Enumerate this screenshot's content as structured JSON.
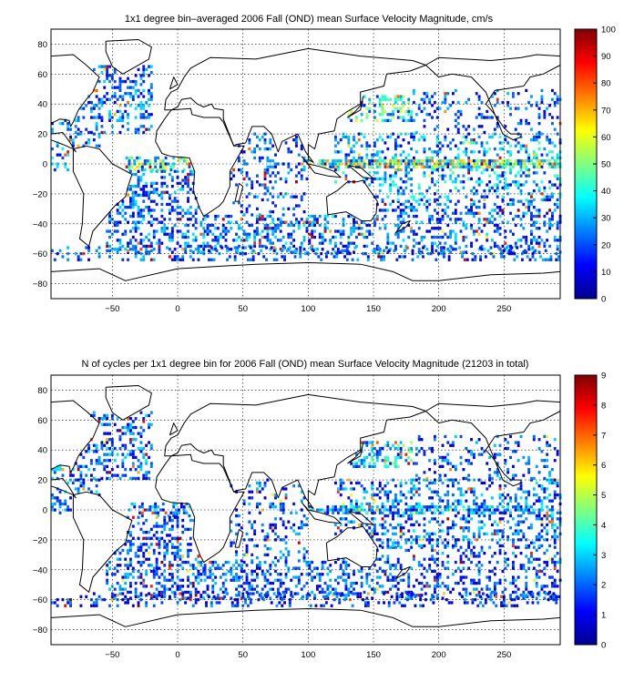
{
  "chart_data": [
    {
      "type": "heatmap",
      "title": "1x1 degree bin–averaged 2006 Fall (OND) mean Surface Velocity Magnitude, cm/s",
      "xlim": [
        -97,
        293
      ],
      "ylim": [
        -90,
        90
      ],
      "xticks": [
        -50,
        0,
        50,
        100,
        150,
        200,
        250
      ],
      "yticks": [
        -80,
        -60,
        -40,
        -20,
        0,
        20,
        40,
        60,
        80
      ],
      "grid": true,
      "colorbar": {
        "min": 0,
        "max": 100,
        "ticks": [
          0,
          10,
          20,
          30,
          40,
          50,
          60,
          70,
          80,
          90,
          100
        ],
        "colormap": "jet",
        "placement": "right"
      },
      "seed": 17,
      "regions": [
        {
          "lon": [
            -97,
            -20
          ],
          "lat": [
            20,
            65
          ],
          "density": 0.32,
          "mean": 22
        },
        {
          "lon": [
            -97,
            -60
          ],
          "lat": [
            -5,
            20
          ],
          "density": 0.3,
          "mean": 25
        },
        {
          "lon": [
            -40,
            10
          ],
          "lat": [
            -5,
            5
          ],
          "density": 0.55,
          "mean": 40
        },
        {
          "lon": [
            -55,
            20
          ],
          "lat": [
            -60,
            -5
          ],
          "density": 0.35,
          "mean": 22
        },
        {
          "lon": [
            20,
            120
          ],
          "lat": [
            -60,
            -35
          ],
          "density": 0.35,
          "mean": 25
        },
        {
          "lon": [
            40,
            100
          ],
          "lat": [
            -35,
            20
          ],
          "density": 0.22,
          "mean": 20
        },
        {
          "lon": [
            120,
            293
          ],
          "lat": [
            -60,
            -25
          ],
          "density": 0.28,
          "mean": 22
        },
        {
          "lon": [
            120,
            293
          ],
          "lat": [
            -25,
            20
          ],
          "density": 0.3,
          "mean": 28
        },
        {
          "lon": [
            130,
            180
          ],
          "lat": [
            28,
            45
          ],
          "density": 0.45,
          "mean": 38
        },
        {
          "lon": [
            180,
            293
          ],
          "lat": [
            20,
            50
          ],
          "density": 0.18,
          "mean": 20
        },
        {
          "lon": [
            100,
            293
          ],
          "lat": [
            -3,
            3
          ],
          "density": 0.7,
          "mean": 48
        },
        {
          "lon": [
            -97,
            293
          ],
          "lat": [
            -65,
            -55
          ],
          "density": 0.25,
          "mean": 20
        }
      ]
    },
    {
      "type": "heatmap",
      "title": "N of cycles per 1x1 degree bin for 2006 Fall (OND) mean Surface Velocity Magnitude (21203 in total)",
      "xlim": [
        -97,
        293
      ],
      "ylim": [
        -90,
        90
      ],
      "xticks": [
        -50,
        0,
        50,
        100,
        150,
        200,
        250
      ],
      "yticks": [
        -80,
        -60,
        -40,
        -20,
        0,
        20,
        40,
        60,
        80
      ],
      "grid": true,
      "colorbar": {
        "min": 0,
        "max": 9,
        "ticks": [
          0,
          1,
          2,
          3,
          4,
          5,
          6,
          7,
          8,
          9
        ],
        "colormap": "jet",
        "placement": "right"
      },
      "seed": 29,
      "regions": [
        {
          "lon": [
            -97,
            -20
          ],
          "lat": [
            20,
            65
          ],
          "density": 0.32,
          "mean": 2
        },
        {
          "lon": [
            -97,
            -60
          ],
          "lat": [
            -5,
            20
          ],
          "density": 0.3,
          "mean": 2
        },
        {
          "lon": [
            -40,
            10
          ],
          "lat": [
            -5,
            5
          ],
          "density": 0.4,
          "mean": 2.2
        },
        {
          "lon": [
            -55,
            20
          ],
          "lat": [
            -60,
            -5
          ],
          "density": 0.35,
          "mean": 1.8
        },
        {
          "lon": [
            20,
            120
          ],
          "lat": [
            -60,
            -35
          ],
          "density": 0.35,
          "mean": 1.8
        },
        {
          "lon": [
            40,
            100
          ],
          "lat": [
            -35,
            20
          ],
          "density": 0.22,
          "mean": 1.8
        },
        {
          "lon": [
            120,
            293
          ],
          "lat": [
            -60,
            -25
          ],
          "density": 0.28,
          "mean": 1.8
        },
        {
          "lon": [
            120,
            293
          ],
          "lat": [
            -25,
            20
          ],
          "density": 0.3,
          "mean": 2
        },
        {
          "lon": [
            130,
            180
          ],
          "lat": [
            28,
            45
          ],
          "density": 0.45,
          "mean": 3
        },
        {
          "lon": [
            180,
            293
          ],
          "lat": [
            20,
            50
          ],
          "density": 0.18,
          "mean": 1.8
        },
        {
          "lon": [
            100,
            293
          ],
          "lat": [
            -3,
            3
          ],
          "density": 0.5,
          "mean": 2.5
        },
        {
          "lon": [
            -97,
            293
          ],
          "lat": [
            -65,
            -55
          ],
          "density": 0.25,
          "mean": 1.6
        }
      ]
    }
  ],
  "coastlines": [
    {
      "name": "north-america-outline",
      "pts": [
        [
          -97,
          72
        ],
        [
          -80,
          73
        ],
        [
          -70,
          66
        ],
        [
          -60,
          58
        ],
        [
          -65,
          48
        ],
        [
          -70,
          43
        ],
        [
          -76,
          36
        ],
        [
          -80,
          28
        ],
        [
          -82,
          25
        ],
        [
          -83,
          29
        ],
        [
          -90,
          30
        ],
        [
          -97,
          27
        ],
        [
          -97,
          72
        ]
      ]
    },
    {
      "name": "south-america-outline",
      "pts": [
        [
          -80,
          10
        ],
        [
          -70,
          12
        ],
        [
          -60,
          10
        ],
        [
          -50,
          0
        ],
        [
          -35,
          -7
        ],
        [
          -38,
          -15
        ],
        [
          -40,
          -22
        ],
        [
          -48,
          -28
        ],
        [
          -58,
          -38
        ],
        [
          -65,
          -45
        ],
        [
          -68,
          -55
        ],
        [
          -75,
          -50
        ],
        [
          -73,
          -40
        ],
        [
          -72,
          -20
        ],
        [
          -80,
          -5
        ],
        [
          -80,
          10
        ]
      ]
    },
    {
      "name": "central-america-outline",
      "pts": [
        [
          -97,
          20
        ],
        [
          -88,
          21
        ],
        [
          -83,
          15
        ],
        [
          -78,
          8
        ],
        [
          -80,
          10
        ],
        [
          -88,
          13
        ],
        [
          -97,
          16
        ]
      ]
    },
    {
      "name": "greenland-outline",
      "pts": [
        [
          -55,
          82
        ],
        [
          -30,
          83
        ],
        [
          -20,
          78
        ],
        [
          -22,
          70
        ],
        [
          -42,
          60
        ],
        [
          -50,
          65
        ],
        [
          -55,
          75
        ],
        [
          -55,
          82
        ]
      ]
    },
    {
      "name": "europe-asia-outline",
      "pts": [
        [
          -10,
          36
        ],
        [
          -9,
          43
        ],
        [
          -5,
          48
        ],
        [
          0,
          50
        ],
        [
          5,
          58
        ],
        [
          10,
          64
        ],
        [
          25,
          71
        ],
        [
          60,
          70
        ],
        [
          100,
          77
        ],
        [
          140,
          72
        ],
        [
          180,
          69
        ],
        [
          190,
          66
        ],
        [
          178,
          62
        ],
        [
          160,
          60
        ],
        [
          158,
          52
        ],
        [
          140,
          48
        ],
        [
          140,
          40
        ],
        [
          130,
          35
        ],
        [
          122,
          30
        ],
        [
          120,
          22
        ],
        [
          108,
          20
        ],
        [
          105,
          10
        ],
        [
          100,
          13
        ],
        [
          100,
          3
        ],
        [
          104,
          1
        ],
        [
          98,
          8
        ],
        [
          92,
          20
        ],
        [
          80,
          15
        ],
        [
          77,
          8
        ],
        [
          72,
          20
        ],
        [
          66,
          25
        ],
        [
          57,
          25
        ],
        [
          52,
          14
        ],
        [
          45,
          13
        ],
        [
          43,
          12
        ],
        [
          35,
          30
        ],
        [
          35,
          36
        ],
        [
          28,
          37
        ],
        [
          26,
          40
        ],
        [
          20,
          38
        ],
        [
          15,
          40
        ],
        [
          10,
          44
        ],
        [
          3,
          43
        ],
        [
          0,
          38
        ],
        [
          -5,
          36
        ],
        [
          -10,
          36
        ]
      ]
    },
    {
      "name": "africa-outline",
      "pts": [
        [
          -17,
          15
        ],
        [
          -16,
          22
        ],
        [
          -10,
          30
        ],
        [
          -5,
          36
        ],
        [
          10,
          37
        ],
        [
          11,
          33
        ],
        [
          20,
          31
        ],
        [
          32,
          31
        ],
        [
          35,
          28
        ],
        [
          43,
          12
        ],
        [
          51,
          12
        ],
        [
          40,
          -5
        ],
        [
          40,
          -15
        ],
        [
          35,
          -25
        ],
        [
          32,
          -28
        ],
        [
          20,
          -35
        ],
        [
          17,
          -30
        ],
        [
          12,
          -18
        ],
        [
          13,
          -5
        ],
        [
          9,
          4
        ],
        [
          -5,
          5
        ],
        [
          -12,
          7
        ],
        [
          -17,
          15
        ]
      ]
    },
    {
      "name": "australia-outline",
      "pts": [
        [
          114,
          -22
        ],
        [
          122,
          -18
        ],
        [
          130,
          -12
        ],
        [
          137,
          -12
        ],
        [
          142,
          -11
        ],
        [
          145,
          -15
        ],
        [
          153,
          -25
        ],
        [
          152,
          -33
        ],
        [
          148,
          -38
        ],
        [
          141,
          -38
        ],
        [
          135,
          -35
        ],
        [
          129,
          -32
        ],
        [
          115,
          -34
        ],
        [
          114,
          -22
        ]
      ]
    },
    {
      "name": "antarctica-outline",
      "pts": [
        [
          -97,
          -72
        ],
        [
          -60,
          -70
        ],
        [
          -40,
          -78
        ],
        [
          0,
          -70
        ],
        [
          60,
          -67
        ],
        [
          100,
          -66
        ],
        [
          140,
          -67
        ],
        [
          165,
          -72
        ],
        [
          180,
          -78
        ],
        [
          200,
          -78
        ],
        [
          240,
          -74
        ],
        [
          280,
          -73
        ],
        [
          293,
          -72
        ],
        [
          293,
          -90
        ],
        [
          -97,
          -90
        ],
        [
          -97,
          -72
        ]
      ]
    },
    {
      "name": "alaska-outline",
      "pts": [
        [
          190,
          66
        ],
        [
          200,
          71
        ],
        [
          220,
          70
        ],
        [
          240,
          69
        ],
        [
          263,
          71
        ],
        [
          275,
          73
        ],
        [
          293,
          72
        ],
        [
          293,
          66
        ],
        [
          280,
          60
        ],
        [
          270,
          58
        ],
        [
          265,
          52
        ],
        [
          243,
          49
        ],
        [
          236,
          40
        ],
        [
          242,
          34
        ],
        [
          250,
          24
        ],
        [
          255,
          20
        ],
        [
          263,
          20
        ],
        [
          263,
          18
        ],
        [
          257,
          16
        ],
        [
          249,
          20
        ],
        [
          236,
          48
        ],
        [
          225,
          58
        ],
        [
          210,
          60
        ],
        [
          200,
          58
        ],
        [
          195,
          62
        ],
        [
          190,
          66
        ]
      ]
    },
    {
      "name": "uk-outline",
      "pts": [
        [
          -6,
          50
        ],
        [
          -3,
          58
        ],
        [
          0,
          53
        ],
        [
          -6,
          50
        ]
      ]
    },
    {
      "name": "japan-outline",
      "pts": [
        [
          130,
          31
        ],
        [
          136,
          35
        ],
        [
          141,
          40
        ],
        [
          142,
          45
        ],
        [
          140,
          36
        ],
        [
          130,
          31
        ]
      ]
    },
    {
      "name": "madagascar-outline",
      "pts": [
        [
          44,
          -25
        ],
        [
          47,
          -13
        ],
        [
          50,
          -15
        ],
        [
          47,
          -25
        ],
        [
          44,
          -25
        ]
      ]
    },
    {
      "name": "new-zealand-outline",
      "pts": [
        [
          172,
          -40
        ],
        [
          178,
          -38
        ],
        [
          175,
          -42
        ],
        [
          167,
          -46
        ],
        [
          172,
          -40
        ]
      ]
    },
    {
      "name": "indonesia-outline",
      "pts": [
        [
          95,
          5
        ],
        [
          105,
          -6
        ],
        [
          115,
          -8
        ],
        [
          125,
          -9
        ],
        [
          120,
          -5
        ],
        [
          110,
          -2
        ],
        [
          100,
          0
        ],
        [
          95,
          5
        ]
      ]
    },
    {
      "name": "new-guinea-outline",
      "pts": [
        [
          131,
          -1
        ],
        [
          141,
          -3
        ],
        [
          150,
          -10
        ],
        [
          142,
          -9
        ],
        [
          135,
          -4
        ],
        [
          131,
          -1
        ]
      ]
    }
  ]
}
